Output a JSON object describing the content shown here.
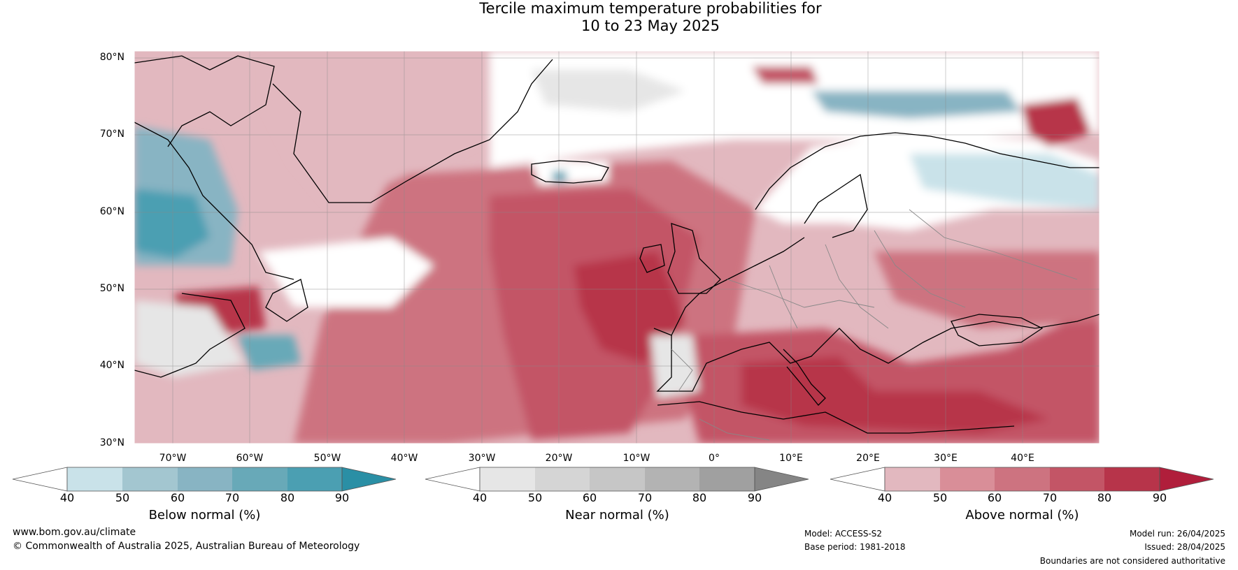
{
  "title": {
    "line1": "Tercile maximum temperature probabilities for",
    "line2": "10 to 23 May 2025"
  },
  "map": {
    "lat_labels": [
      "80°N",
      "70°N",
      "60°N",
      "50°N",
      "40°N",
      "30°N"
    ],
    "lon_labels": [
      "70°W",
      "60°W",
      "50°W",
      "40°W",
      "30°W",
      "20°W",
      "10°W",
      "0°",
      "10°E",
      "20°E",
      "30°E",
      "40°E"
    ]
  },
  "colorbars": [
    {
      "title": "Below normal (%)",
      "ticks": [
        "40",
        "50",
        "60",
        "70",
        "80",
        "90"
      ],
      "colors": [
        "#c9e2e9",
        "#a3c6d0",
        "#88b4c3",
        "#68a9b8",
        "#4b9fb2",
        "#2a8fa5"
      ]
    },
    {
      "title": "Near normal (%)",
      "ticks": [
        "40",
        "50",
        "60",
        "70",
        "80",
        "90"
      ],
      "colors": [
        "#e6e6e6",
        "#d5d5d5",
        "#c6c6c6",
        "#b3b3b3",
        "#a0a0a0",
        "#858585"
      ]
    },
    {
      "title": "Above normal (%)",
      "ticks": [
        "40",
        "50",
        "60",
        "70",
        "80",
        "90"
      ],
      "colors": [
        "#e2b8bf",
        "#d98e98",
        "#cd7380",
        "#c35566",
        "#b7344a",
        "#b01e3b"
      ]
    }
  ],
  "footer": {
    "website": "www.bom.gov.au/climate",
    "copyright": "© Commonwealth of Australia 2025, Australian Bureau of Meteorology",
    "model": "Model: ACCESS-S2",
    "base_period": "Base period: 1981-2018",
    "model_run": "Model run: 26/04/2025",
    "issued": "Issued: 28/04/2025",
    "disclaimer": "Boundaries are not considered authoritative"
  }
}
